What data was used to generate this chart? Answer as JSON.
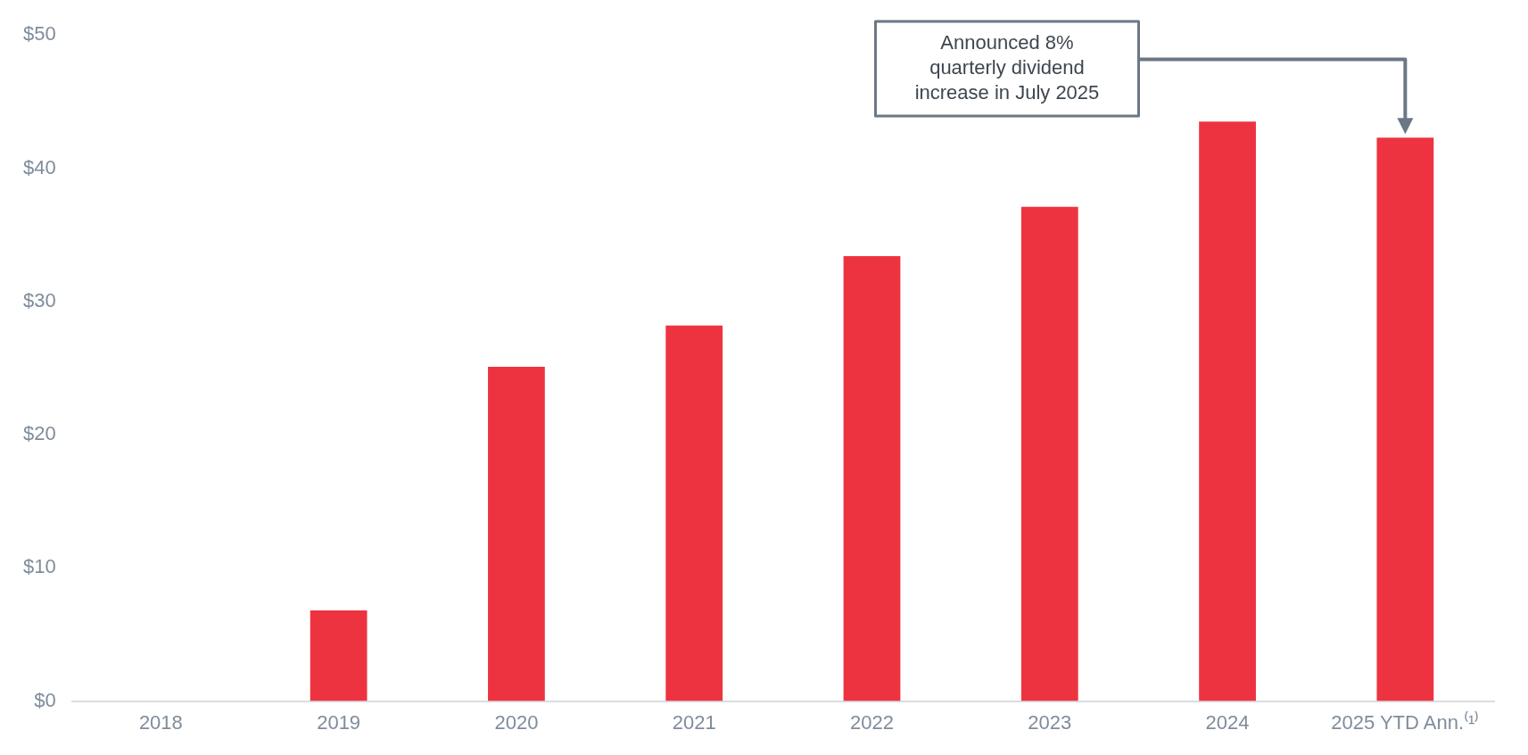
{
  "chart_data": {
    "type": "bar",
    "categories": [
      "2018",
      "2019",
      "2020",
      "2021",
      "2022",
      "2023",
      "2024",
      "2025 YTD Ann.⁽¹⁾"
    ],
    "values": [
      null,
      6.8,
      25.1,
      28.2,
      33.4,
      37.1,
      43.5,
      42.3
    ],
    "color": "#ee3340",
    "ylim": [
      0,
      50
    ],
    "yticks": [
      {
        "value": 0,
        "label": "$0"
      },
      {
        "value": 10,
        "label": "$10"
      },
      {
        "value": 20,
        "label": "$20"
      },
      {
        "value": 30,
        "label": "$30"
      },
      {
        "value": 40,
        "label": "$40"
      },
      {
        "value": 50,
        "label": "$50"
      }
    ],
    "grid": false,
    "legend": false,
    "annotations": [
      "Announced 8% quarterly dividend increase in July 2025"
    ]
  }
}
